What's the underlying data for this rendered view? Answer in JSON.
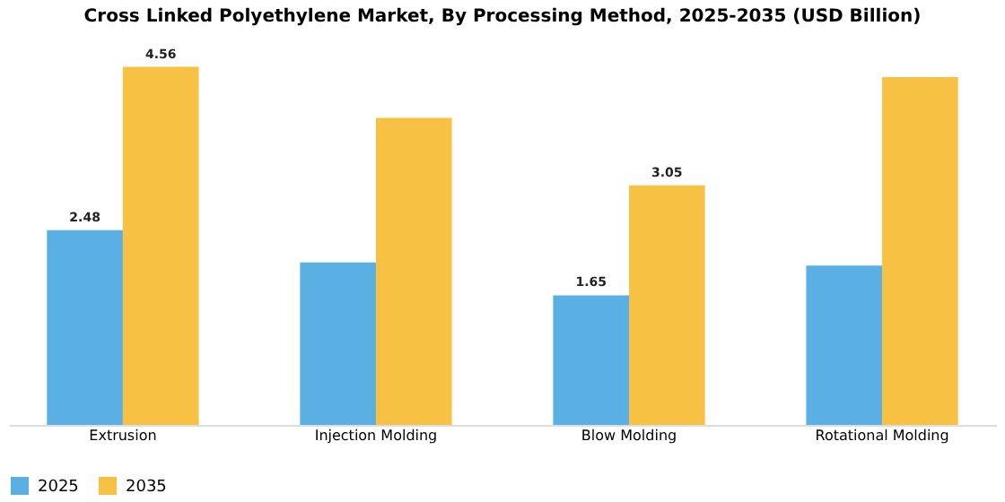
{
  "chart_data": {
    "type": "bar",
    "title": "Cross Linked Polyethylene Market, By Processing Method, 2025-2035 (USD Billion)",
    "categories": [
      "Extrusion",
      "Injection Molding",
      "Blow Molding",
      "Rotational Molding"
    ],
    "series": [
      {
        "name": "2025",
        "color": "#5aafe3",
        "values": [
          2.48,
          2.07,
          1.65,
          2.03
        ],
        "value_labels": [
          "2.48",
          null,
          "1.65",
          null
        ]
      },
      {
        "name": "2035",
        "color": "#f7c143",
        "values": [
          4.56,
          3.91,
          3.05,
          4.43
        ],
        "value_labels": [
          "4.56",
          null,
          "3.05",
          null
        ]
      }
    ],
    "legend": "bottom",
    "grid": false,
    "tick_labels": "x"
  }
}
